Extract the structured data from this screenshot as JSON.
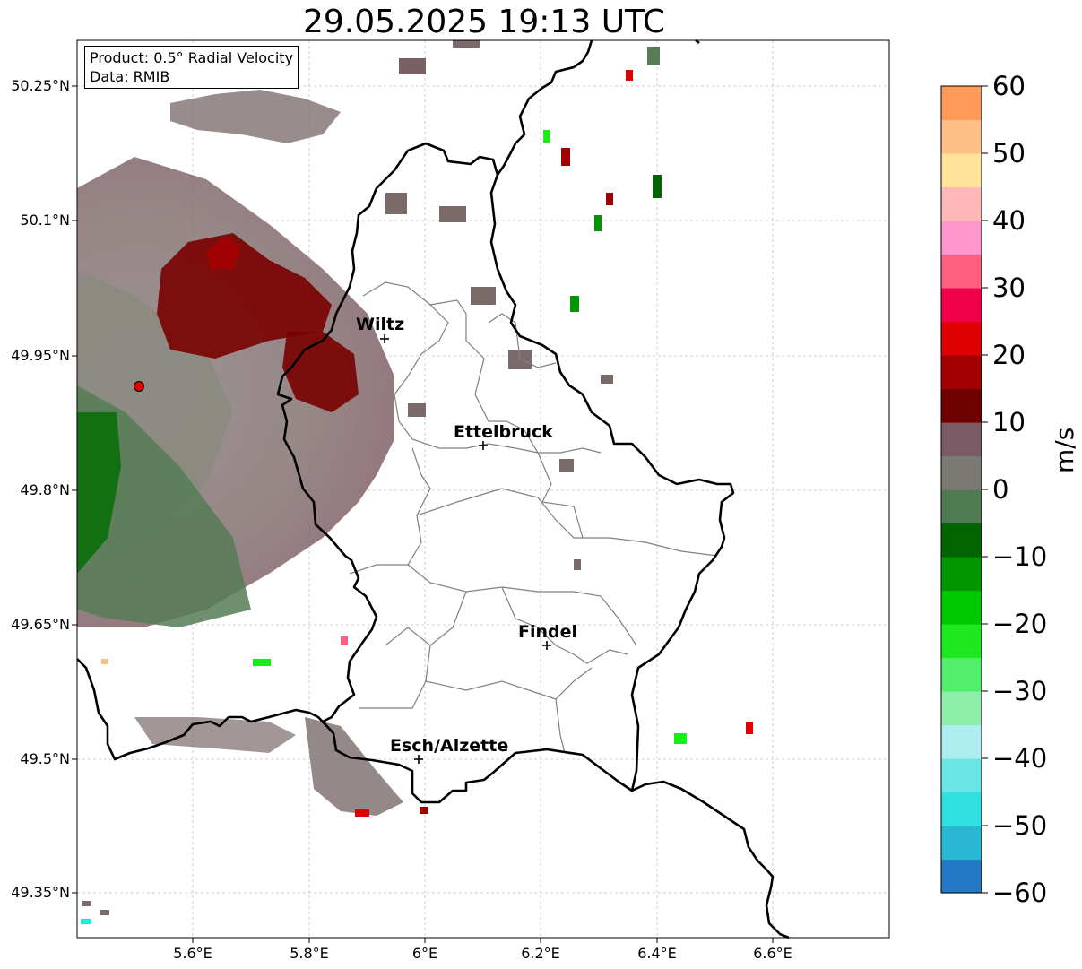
{
  "title": "29.05.2025 19:13 UTC",
  "info": {
    "product": "Product: 0.5° Radial Velocity",
    "data_source": "Data: RMIB"
  },
  "axes": {
    "lat_labels": [
      "50.25°N",
      "50.1°N",
      "49.95°N",
      "49.8°N",
      "49.65°N",
      "49.5°N",
      "49.35°N"
    ],
    "lon_labels": [
      "5.6°E",
      "5.8°E",
      "6°E",
      "6.2°E",
      "6.4°E",
      "6.6°E"
    ]
  },
  "cities": [
    {
      "name": "Wiltz"
    },
    {
      "name": "Ettelbruck"
    },
    {
      "name": "Findel"
    },
    {
      "name": "Esch/Alzette"
    }
  ],
  "colorbar": {
    "unit": "m/s",
    "ticks": [
      "60",
      "50",
      "40",
      "30",
      "20",
      "10",
      "0",
      "−10",
      "−20",
      "−30",
      "−40",
      "−50",
      "−60"
    ],
    "stops": [
      "#2379c4",
      "#28b8d4",
      "#2ee0e0",
      "#6ae5e5",
      "#aeeef0",
      "#8ef0a8",
      "#52f06a",
      "#1ee81e",
      "#00c800",
      "#009600",
      "#006400",
      "#4f7a52",
      "#7a7a72",
      "#7a5a64",
      "#6e0000",
      "#a00000",
      "#dc0000",
      "#f0004a",
      "#ff6080",
      "#ff96cc",
      "#ffb8b8",
      "#ffe49a",
      "#ffc088",
      "#ff9a5a"
    ]
  },
  "colors": {
    "border": "#000000",
    "canton_lines": "#808080",
    "radar_site": "#e00000"
  }
}
